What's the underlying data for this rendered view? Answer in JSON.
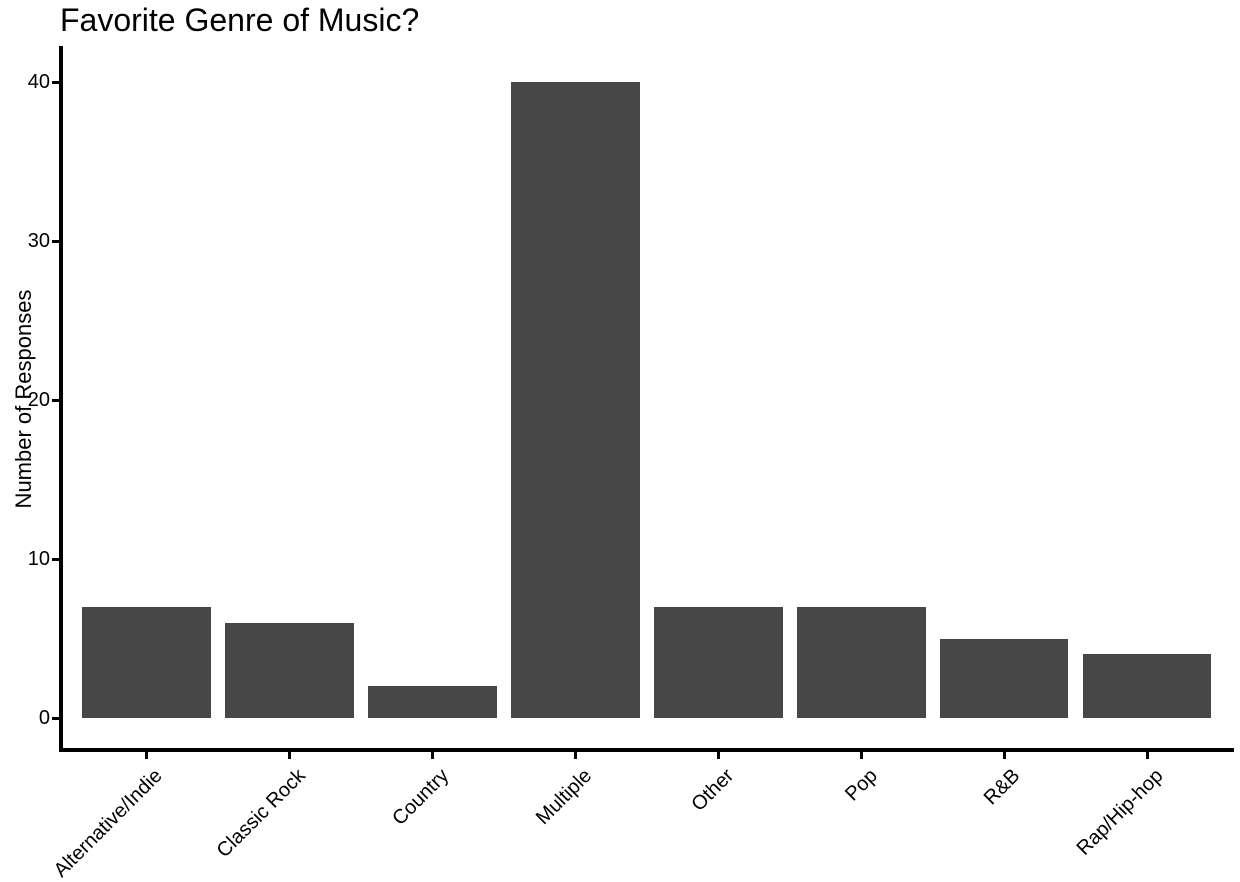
{
  "figure": {
    "background": "#ffffff"
  },
  "chart_data": {
    "type": "bar",
    "title": "Favorite Genre of Music?",
    "categories": [
      "Alternative/Indie",
      "Classic Rock",
      "Country",
      "Multiple",
      "Other",
      "Pop",
      "R&B",
      "Rap/Hip-hop"
    ],
    "values": [
      7,
      6,
      2,
      40,
      7,
      7,
      5,
      4
    ],
    "xlabel": "",
    "ylabel": "Number of Responses",
    "yticks": [
      0,
      10,
      20,
      30,
      40
    ],
    "ylim": [
      0,
      40
    ],
    "bar_color": "#474747",
    "axis_color": "#000000",
    "text_color": "#000000",
    "grid": false,
    "legend": "none",
    "x_tick_rotation_deg": 45
  }
}
